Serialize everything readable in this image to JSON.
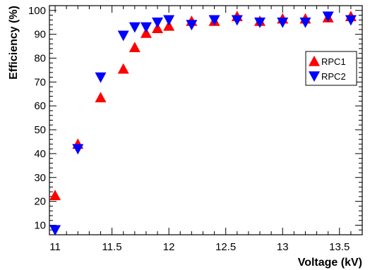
{
  "chart_data": {
    "type": "scatter",
    "xlabel": "Voltage (kV)",
    "ylabel": "Efficiency (%)",
    "xlim": [
      10.95,
      13.7
    ],
    "ylim": [
      6,
      102
    ],
    "x_ticks": [
      11,
      11.5,
      12,
      12.5,
      13,
      13.5
    ],
    "x_tick_labels": [
      "11",
      "11.5",
      "12",
      "12.5",
      "13",
      "13.5"
    ],
    "y_ticks": [
      10,
      20,
      30,
      40,
      50,
      60,
      70,
      80,
      90,
      100
    ],
    "y_tick_labels": [
      "10",
      "20",
      "30",
      "40",
      "50",
      "60",
      "70",
      "80",
      "90",
      "100"
    ],
    "legend_position": "right",
    "series": [
      {
        "name": "RPC1",
        "color": "#ff0000",
        "marker": "triangle-up",
        "x": [
          11,
          11.2,
          11.4,
          11.6,
          11.7,
          11.8,
          11.9,
          12,
          12.2,
          12.4,
          12.6,
          12.8,
          13,
          13.2,
          13.4,
          13.6
        ],
        "y": [
          22.5,
          44,
          63.5,
          75.5,
          84.5,
          90.5,
          92.5,
          93.5,
          95.5,
          95.5,
          97.5,
          95.5,
          96.5,
          96.5,
          97,
          97.5
        ]
      },
      {
        "name": "RPC2",
        "color": "#0000ff",
        "marker": "triangle-down",
        "x": [
          11,
          11.2,
          11.4,
          11.6,
          11.7,
          11.8,
          11.9,
          12,
          12.2,
          12.4,
          12.6,
          12.8,
          13,
          13.2,
          13.4,
          13.6
        ],
        "y": [
          8,
          42,
          72,
          89.5,
          93,
          93,
          95,
          96,
          94,
          96,
          96,
          95,
          95,
          95,
          97.5,
          96
        ]
      }
    ]
  }
}
